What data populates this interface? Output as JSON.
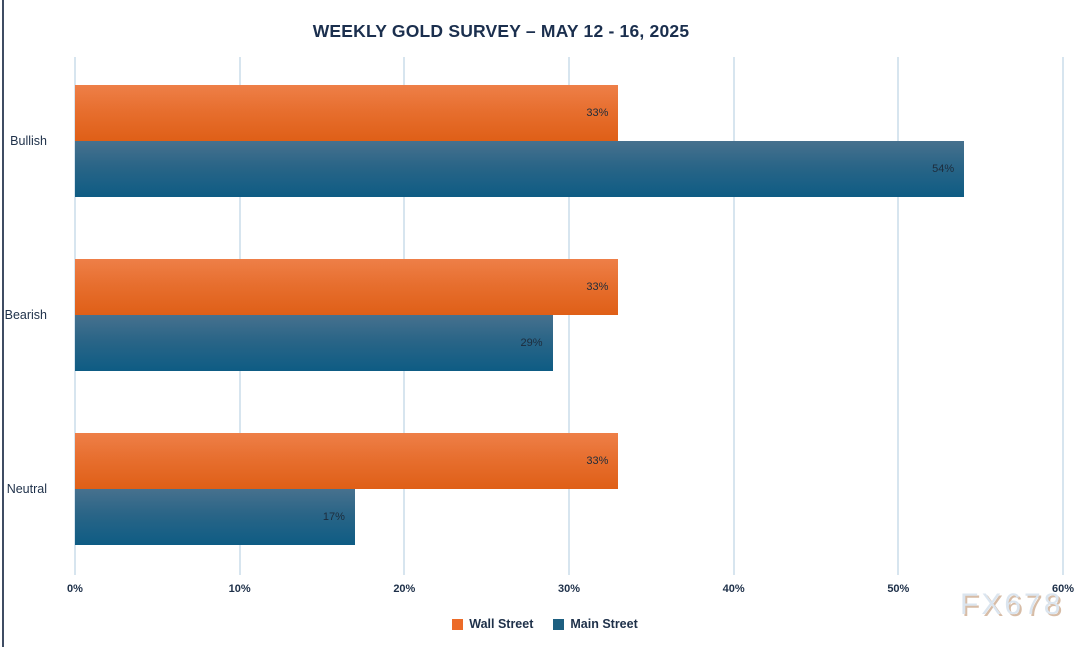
{
  "watermark": "FX678",
  "colors": {
    "wall_street": "#ec6b28",
    "wall_street_gradient_top": "#ee7f48",
    "wall_street_gradient_bottom": "#df5f17",
    "main_street": "#1d5f80",
    "main_street_gradient_top": "#47718e",
    "main_street_gradient_bottom": "#0e5c84",
    "title_text": "#1b2f4e",
    "axis_text": "#1e3049",
    "gridline": "#d7e5ef",
    "data_label_text": "#1d2c3c",
    "left_border": "#3f4c63",
    "watermark_text": "#dbe5ef"
  },
  "chart_data": {
    "type": "bar",
    "orientation": "horizontal",
    "title": "WEEKLY GOLD SURVEY – MAY 12 - 16, 2025",
    "categories": [
      "Bullish",
      "Bearish",
      "Neutral"
    ],
    "series": [
      {
        "name": "Wall Street",
        "key": "wall",
        "values": [
          33,
          33,
          33
        ]
      },
      {
        "name": "Main Street",
        "key": "main",
        "values": [
          54,
          29,
          17
        ]
      }
    ],
    "value_suffix": "%",
    "x_ticks": [
      "0%",
      "10%",
      "20%",
      "30%",
      "40%",
      "50%",
      "60%"
    ],
    "x_range": [
      0,
      60
    ],
    "grid": true,
    "legend_position": "bottom",
    "data_labels": "inside-end"
  },
  "legend": {
    "items": [
      {
        "label": "Wall Street",
        "series_key": "wall"
      },
      {
        "label": "Main Street",
        "series_key": "main"
      }
    ]
  }
}
